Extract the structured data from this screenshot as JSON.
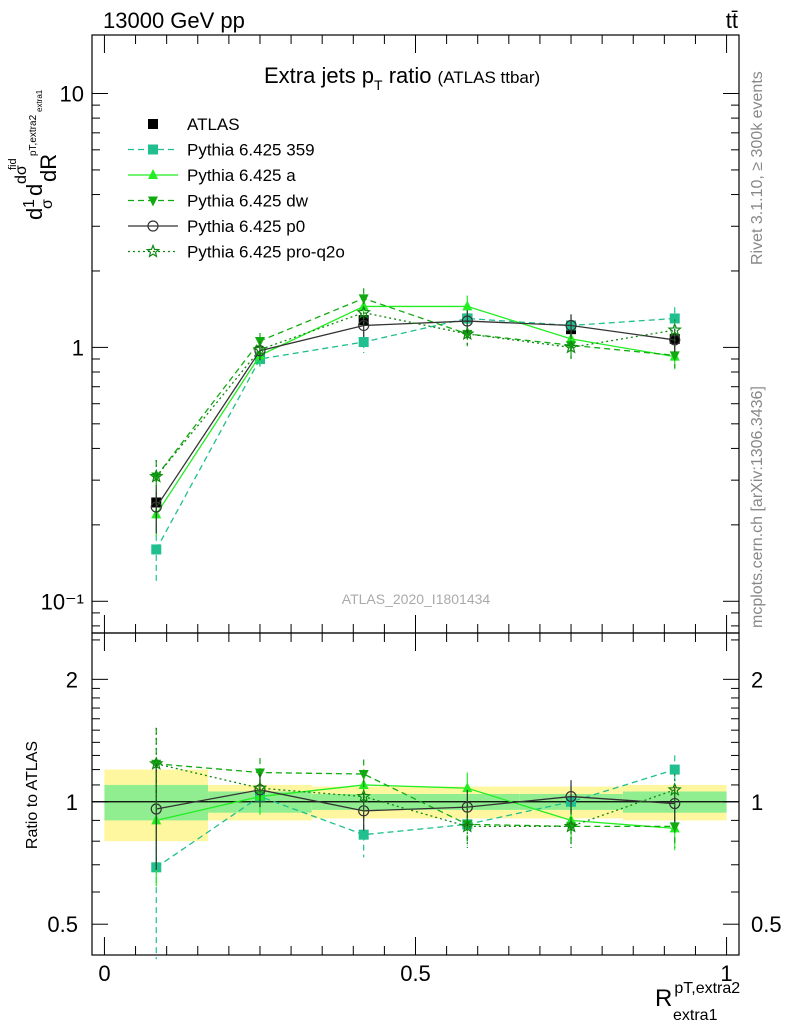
{
  "header": {
    "energy": "13000 GeV pp",
    "process": "tt̄"
  },
  "side_text": {
    "rivet": "Rivet 3.1.10, ≥ 300k events",
    "mcplots": "mcplots.cern.ch [arXiv:1306.3436]"
  },
  "watermark": "ATLAS_2020_I1801434",
  "chart_data": [
    {
      "type": "line",
      "title": "Extra jets p",
      "title_sub": "T",
      "title_tail": " ratio",
      "title_small": "(ATLAS ttbar)",
      "ylabel": "dσ/dR",
      "yscale": "log",
      "ylim": [
        0.075,
        17
      ],
      "xlim": [
        -0.02,
        1.02
      ],
      "y_tick_labels": [
        "10⁻¹",
        "1",
        "10"
      ],
      "x": [
        0.0833,
        0.25,
        0.4167,
        0.5833,
        0.75,
        0.9167
      ],
      "reference_band": {
        "inner_half_width": [
          0.1,
          0.06,
          0.045,
          0.045,
          0.045,
          0.06
        ],
        "outer_half_width": [
          0.2,
          0.1,
          0.09,
          0.09,
          0.09,
          0.1
        ]
      },
      "series": [
        {
          "name": "ATLAS",
          "values": [
            0.245,
            0.9,
            1.28,
            1.3,
            1.18,
            1.08
          ],
          "errors": [
            0.02,
            0.05,
            0.06,
            0.06,
            0.06,
            0.06
          ],
          "color": "#000000",
          "marker": "square",
          "dash": "solid",
          "line": false
        },
        {
          "name": "Pythia 6.425 359",
          "values": [
            0.16,
            0.9,
            1.05,
            1.3,
            1.22,
            1.3
          ],
          "errors": [
            0.04,
            0.06,
            0.1,
            0.12,
            0.12,
            0.14
          ],
          "color": "#1fbf8f",
          "marker": "square",
          "dash": "dashed",
          "line": true
        },
        {
          "name": "Pythia 6.425 a",
          "values": [
            0.22,
            0.93,
            1.45,
            1.45,
            1.08,
            0.92
          ],
          "errors": [
            0.04,
            0.07,
            0.13,
            0.15,
            0.12,
            0.1
          ],
          "color": "#22ee22",
          "marker": "triangle-up",
          "dash": "solid",
          "line": true
        },
        {
          "name": "Pythia 6.425 dw",
          "values": [
            0.31,
            1.06,
            1.56,
            1.13,
            1.02,
            0.93
          ],
          "errors": [
            0.05,
            0.08,
            0.15,
            0.12,
            0.12,
            0.1
          ],
          "color": "#11aa11",
          "marker": "triangle-down",
          "dash": "dashed",
          "line": true
        },
        {
          "name": "Pythia 6.425 p0",
          "values": [
            0.235,
            0.97,
            1.22,
            1.27,
            1.22,
            1.07
          ],
          "errors": [
            0.05,
            0.08,
            0.12,
            0.13,
            0.13,
            0.11
          ],
          "color": "#333333",
          "marker": "circle-open",
          "dash": "solid",
          "line": true
        },
        {
          "name": "Pythia 6.425 pro-q2o",
          "values": [
            0.31,
            0.98,
            1.37,
            1.13,
            1.0,
            1.17
          ],
          "errors": [
            0.05,
            0.08,
            0.14,
            0.12,
            0.11,
            0.12
          ],
          "color": "#118811",
          "marker": "star",
          "dash": "dotted",
          "line": true
        }
      ]
    },
    {
      "type": "line",
      "ylabel": "Ratio to ATLAS",
      "xlabel_main": "R",
      "xlabel_sup": "pT,extra2",
      "xlabel_sub": "extra1",
      "xlim": [
        -0.02,
        1.02
      ],
      "ylim": [
        0.42,
        2.6
      ],
      "yscale": "log",
      "y_tick_labels": [
        "0.5",
        "1",
        "2"
      ],
      "x_tick_labels": [
        "0",
        "0.5",
        "1"
      ],
      "x": [
        0.0833,
        0.25,
        0.4167,
        0.5833,
        0.75,
        0.9167
      ],
      "series": [
        {
          "name": "Pythia 6.425 359",
          "values": [
            0.69,
            1.03,
            0.83,
            0.88,
            1.0,
            1.2
          ]
        },
        {
          "name": "Pythia 6.425 a",
          "values": [
            0.9,
            1.03,
            1.1,
            1.08,
            0.9,
            0.86
          ]
        },
        {
          "name": "Pythia 6.425 dw",
          "values": [
            1.24,
            1.18,
            1.17,
            0.88,
            0.87,
            0.87
          ]
        },
        {
          "name": "Pythia 6.425 p0",
          "values": [
            0.96,
            1.07,
            0.95,
            0.97,
            1.03,
            0.99
          ]
        },
        {
          "name": "Pythia 6.425 pro-q2o",
          "values": [
            1.24,
            1.08,
            1.03,
            0.87,
            0.87,
            1.07
          ]
        }
      ],
      "errors": [
        0.28,
        0.1,
        0.1,
        0.1,
        0.1,
        0.1
      ]
    }
  ]
}
